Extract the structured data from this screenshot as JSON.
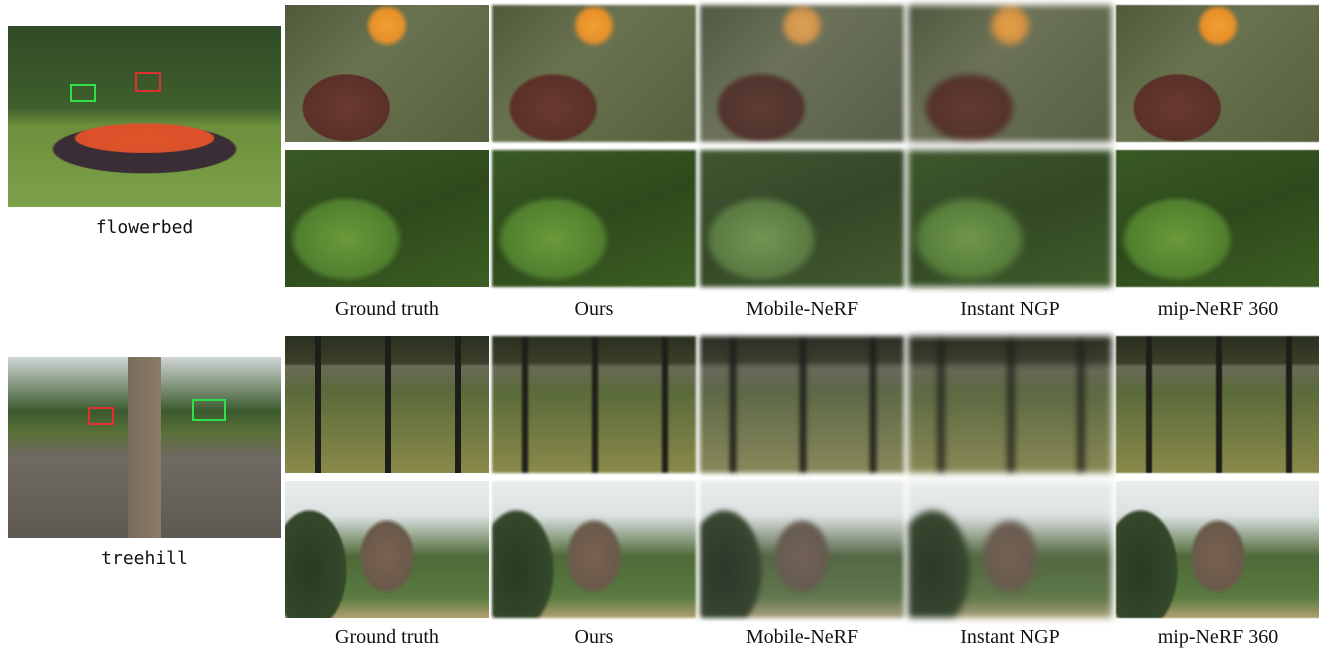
{
  "figure": {
    "groups": [
      {
        "scene": "flowerbed",
        "captions": [
          "Ground truth",
          "Ours",
          "Mobile-NeRF",
          "Instant NGP",
          "mip-NeRF 360"
        ]
      },
      {
        "scene": "treehill",
        "captions": [
          "Ground truth",
          "Ours",
          "Mobile-NeRF",
          "Instant NGP",
          "mip-NeRF 360"
        ]
      }
    ]
  }
}
